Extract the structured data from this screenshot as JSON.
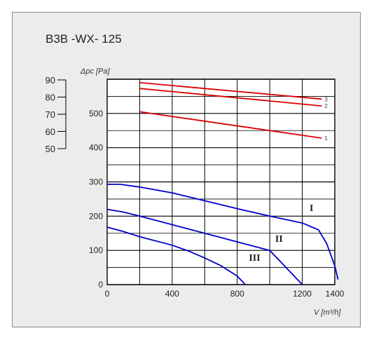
{
  "chart_data": {
    "type": "line",
    "title": "B3B -WX- 125",
    "ylabel": "Δpc [Pa]",
    "xlabel": "V [m³/h]",
    "xlim": [
      0,
      1400
    ],
    "ylim": [
      0,
      600
    ],
    "x_ticks": [
      0,
      400,
      800,
      1200,
      1400
    ],
    "y_ticks": [
      0,
      100,
      200,
      300,
      400,
      500
    ],
    "grid": true,
    "secondary_scale": {
      "labels": [
        90,
        80,
        70,
        60,
        50
      ]
    },
    "series": [
      {
        "name": "I",
        "color": "#0000cc",
        "points": [
          [
            0,
            293
          ],
          [
            80,
            293
          ],
          [
            200,
            285
          ],
          [
            400,
            268
          ],
          [
            600,
            245
          ],
          [
            800,
            222
          ],
          [
            1000,
            200
          ],
          [
            1200,
            180
          ],
          [
            1300,
            160
          ],
          [
            1350,
            120
          ],
          [
            1400,
            55
          ],
          [
            1420,
            15
          ]
        ]
      },
      {
        "name": "II",
        "color": "#0000cc",
        "points": [
          [
            0,
            220
          ],
          [
            100,
            212
          ],
          [
            200,
            200
          ],
          [
            400,
            175
          ],
          [
            600,
            150
          ],
          [
            800,
            125
          ],
          [
            1000,
            100
          ],
          [
            1050,
            75
          ],
          [
            1100,
            50
          ],
          [
            1150,
            25
          ],
          [
            1200,
            0
          ]
        ]
      },
      {
        "name": "III",
        "color": "#0000cc",
        "points": [
          [
            0,
            168
          ],
          [
            100,
            155
          ],
          [
            200,
            140
          ],
          [
            400,
            115
          ],
          [
            500,
            98
          ],
          [
            600,
            78
          ],
          [
            700,
            55
          ],
          [
            800,
            25
          ],
          [
            850,
            0
          ]
        ]
      },
      {
        "name": "1",
        "color": "#dd0000",
        "points": [
          [
            200,
            505
          ],
          [
            1320,
            428
          ]
        ]
      },
      {
        "name": "2",
        "color": "#dd0000",
        "points": [
          [
            200,
            573
          ],
          [
            1320,
            522
          ]
        ]
      },
      {
        "name": "3",
        "color": "#dd0000",
        "points": [
          [
            200,
            590
          ],
          [
            1320,
            542
          ]
        ]
      }
    ]
  }
}
